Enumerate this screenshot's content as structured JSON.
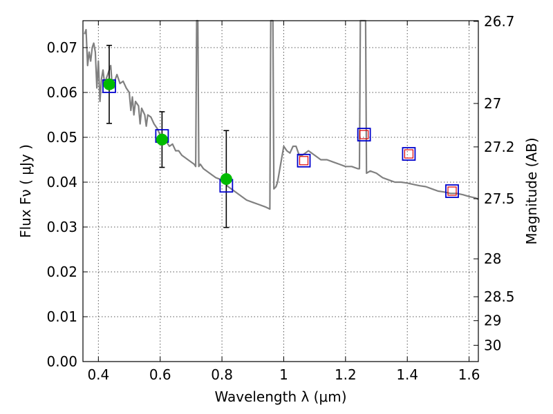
{
  "chart_data": {
    "type": "scatter",
    "xlabel": "Wavelength  λ (μm)",
    "ylabel": "Flux  Fν  ( μJy )",
    "y2label": "Magnitude (AB)",
    "xlim": [
      0.35,
      1.63
    ],
    "ylim": [
      0.0,
      0.076
    ],
    "x_ticks": [
      0.4,
      0.6,
      0.8,
      1.0,
      1.2,
      1.4,
      1.6
    ],
    "x_tick_labels": [
      "0.4",
      "0.6",
      "0.8",
      "1",
      "1.2",
      "1.4",
      "1.6"
    ],
    "y_ticks": [
      0.0,
      0.01,
      0.02,
      0.03,
      0.04,
      0.05,
      0.06,
      0.07
    ],
    "y_tick_labels": [
      "0.00",
      "0.01",
      "0.02",
      "0.03",
      "0.04",
      "0.05",
      "0.06",
      "0.07"
    ],
    "y2_ticks": [
      26.7,
      27,
      27.2,
      27.5,
      28,
      28.5,
      29,
      30
    ],
    "y2_tick_labels": [
      "26.7",
      "27",
      "27.2",
      "27.5",
      "28",
      "28.5",
      "29",
      "30"
    ],
    "grid": true,
    "colors": {
      "model": "#808080",
      "observed": "#00bb00",
      "model_box": "#0000cc",
      "red_box": "#dd0000",
      "errorbar": "#000000"
    },
    "model_spectrum": [
      [
        0.355,
        0.073
      ],
      [
        0.36,
        0.074
      ],
      [
        0.365,
        0.066
      ],
      [
        0.37,
        0.069
      ],
      [
        0.375,
        0.067
      ],
      [
        0.38,
        0.07
      ],
      [
        0.385,
        0.071
      ],
      [
        0.39,
        0.069
      ],
      [
        0.395,
        0.061
      ],
      [
        0.4,
        0.067
      ],
      [
        0.405,
        0.058
      ],
      [
        0.41,
        0.063
      ],
      [
        0.415,
        0.065
      ],
      [
        0.42,
        0.062
      ],
      [
        0.43,
        0.064
      ],
      [
        0.44,
        0.066
      ],
      [
        0.445,
        0.061
      ],
      [
        0.45,
        0.061
      ],
      [
        0.455,
        0.063
      ],
      [
        0.46,
        0.064
      ],
      [
        0.47,
        0.062
      ],
      [
        0.48,
        0.0625
      ],
      [
        0.49,
        0.061
      ],
      [
        0.5,
        0.06
      ],
      [
        0.505,
        0.056
      ],
      [
        0.51,
        0.059
      ],
      [
        0.515,
        0.055
      ],
      [
        0.52,
        0.058
      ],
      [
        0.53,
        0.057
      ],
      [
        0.535,
        0.053
      ],
      [
        0.54,
        0.0565
      ],
      [
        0.55,
        0.055
      ],
      [
        0.555,
        0.0525
      ],
      [
        0.56,
        0.055
      ],
      [
        0.57,
        0.0545
      ],
      [
        0.58,
        0.053
      ],
      [
        0.59,
        0.052
      ],
      [
        0.6,
        0.0505
      ],
      [
        0.61,
        0.0495
      ],
      [
        0.62,
        0.049
      ],
      [
        0.63,
        0.048
      ],
      [
        0.64,
        0.0485
      ],
      [
        0.65,
        0.047
      ],
      [
        0.66,
        0.047
      ],
      [
        0.67,
        0.046
      ],
      [
        0.68,
        0.0455
      ],
      [
        0.69,
        0.045
      ],
      [
        0.7,
        0.0445
      ],
      [
        0.71,
        0.044
      ],
      [
        0.715,
        0.0435
      ],
      [
        0.718,
        0.085
      ],
      [
        0.722,
        0.085
      ],
      [
        0.725,
        0.0435
      ],
      [
        0.73,
        0.044
      ],
      [
        0.74,
        0.043
      ],
      [
        0.75,
        0.0425
      ],
      [
        0.76,
        0.042
      ],
      [
        0.78,
        0.041
      ],
      [
        0.8,
        0.0405
      ],
      [
        0.82,
        0.039
      ],
      [
        0.84,
        0.038
      ],
      [
        0.86,
        0.037
      ],
      [
        0.88,
        0.036
      ],
      [
        0.9,
        0.0355
      ],
      [
        0.92,
        0.035
      ],
      [
        0.94,
        0.0345
      ],
      [
        0.955,
        0.034
      ],
      [
        0.958,
        0.085
      ],
      [
        0.965,
        0.085
      ],
      [
        0.968,
        0.0385
      ],
      [
        0.975,
        0.039
      ],
      [
        0.98,
        0.04
      ],
      [
        0.99,
        0.044
      ],
      [
        1.0,
        0.048
      ],
      [
        1.01,
        0.047
      ],
      [
        1.02,
        0.0465
      ],
      [
        1.03,
        0.048
      ],
      [
        1.04,
        0.048
      ],
      [
        1.05,
        0.046
      ],
      [
        1.06,
        0.046
      ],
      [
        1.07,
        0.0465
      ],
      [
        1.08,
        0.047
      ],
      [
        1.09,
        0.0465
      ],
      [
        1.1,
        0.046
      ],
      [
        1.12,
        0.045
      ],
      [
        1.14,
        0.045
      ],
      [
        1.16,
        0.0445
      ],
      [
        1.18,
        0.044
      ],
      [
        1.2,
        0.0435
      ],
      [
        1.22,
        0.0435
      ],
      [
        1.24,
        0.043
      ],
      [
        1.245,
        0.043
      ],
      [
        1.248,
        0.085
      ],
      [
        1.265,
        0.085
      ],
      [
        1.268,
        0.042
      ],
      [
        1.28,
        0.0425
      ],
      [
        1.3,
        0.042
      ],
      [
        1.32,
        0.041
      ],
      [
        1.34,
        0.0405
      ],
      [
        1.36,
        0.04
      ],
      [
        1.38,
        0.04
      ],
      [
        1.4,
        0.0398
      ],
      [
        1.42,
        0.0395
      ],
      [
        1.44,
        0.0392
      ],
      [
        1.46,
        0.039
      ],
      [
        1.48,
        0.0385
      ],
      [
        1.5,
        0.038
      ],
      [
        1.52,
        0.0378
      ],
      [
        1.54,
        0.0375
      ],
      [
        1.56,
        0.0375
      ],
      [
        1.58,
        0.0372
      ],
      [
        1.6,
        0.0368
      ],
      [
        1.62,
        0.0365
      ],
      [
        1.63,
        0.0362
      ]
    ],
    "observed": [
      {
        "x": 0.435,
        "y": 0.0618,
        "err": 0.0087
      },
      {
        "x": 0.606,
        "y": 0.0495,
        "err": 0.0062
      },
      {
        "x": 0.814,
        "y": 0.0407,
        "err": 0.0108
      }
    ],
    "model_points": [
      {
        "x": 0.435,
        "y": 0.0614,
        "red": false
      },
      {
        "x": 0.606,
        "y": 0.0503,
        "red": false
      },
      {
        "x": 0.814,
        "y": 0.0392,
        "red": false
      },
      {
        "x": 1.065,
        "y": 0.0448,
        "red": true
      },
      {
        "x": 1.26,
        "y": 0.0506,
        "red": true
      },
      {
        "x": 1.405,
        "y": 0.0463,
        "red": true
      },
      {
        "x": 1.545,
        "y": 0.038,
        "red": true
      }
    ]
  }
}
